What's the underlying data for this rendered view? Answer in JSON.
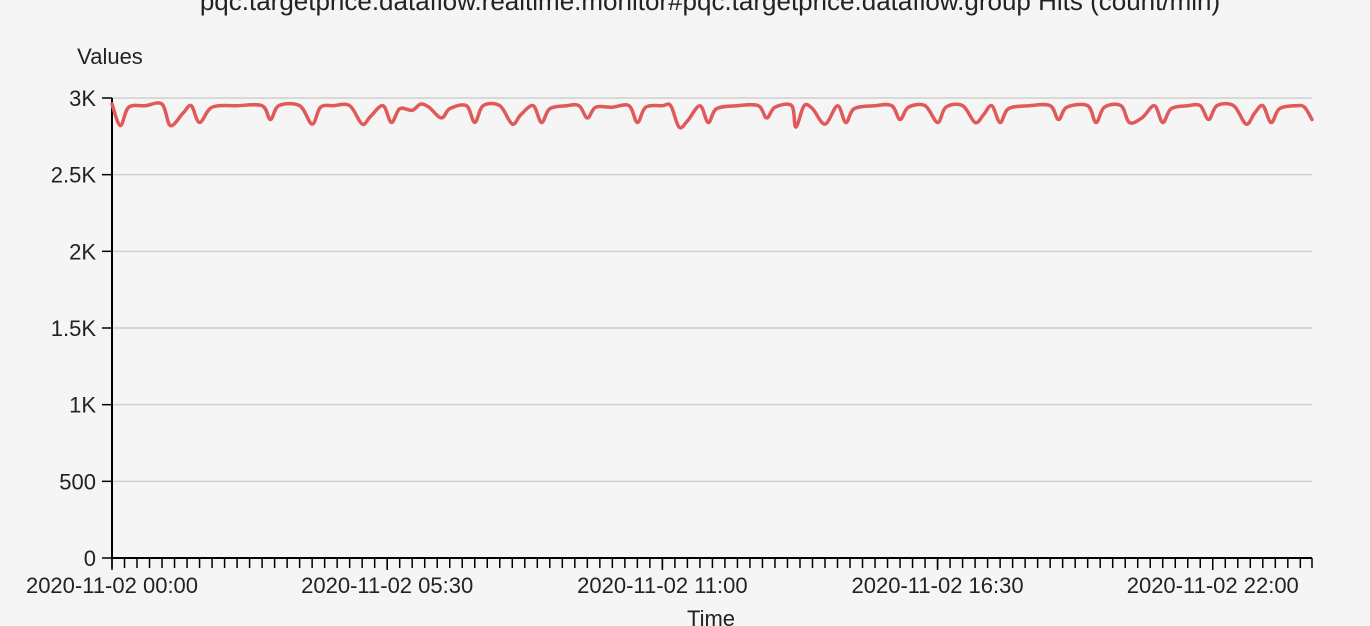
{
  "chart_data": {
    "type": "line",
    "title": "pqc.targetprice.dataflow.realtime.monitor#pqc.targetprice.dataflow.group Hits (count/min)",
    "xlabel": "Time",
    "ylabel": "Values",
    "grid": true,
    "ylim": [
      0,
      3000
    ],
    "y_ticks": [
      0,
      500,
      1000,
      1500,
      2000,
      2500,
      3000
    ],
    "y_tick_labels": [
      "0",
      "500",
      "1K",
      "1.5K",
      "2K",
      "2.5K",
      "3K"
    ],
    "x_range": [
      "2020-11-02 00:00",
      "2020-11-02 23:59"
    ],
    "x_tick_labels": [
      {
        "time": "2020-11-02 00:00",
        "label": "2020-11-02 00:00"
      },
      {
        "time": "2020-11-02 05:30",
        "label": "2020-11-02 05:30"
      },
      {
        "time": "2020-11-02 11:00",
        "label": "2020-11-02 11:00"
      },
      {
        "time": "2020-11-02 16:30",
        "label": "2020-11-02 16:30"
      },
      {
        "time": "2020-11-02 22:00",
        "label": "2020-11-02 22:00"
      }
    ],
    "series": [
      {
        "color": "#e05a5a",
        "points": [
          [
            "2020-11-02 00:00",
            2960
          ],
          [
            "2020-11-02 00:10",
            2820
          ],
          [
            "2020-11-02 00:20",
            2940
          ],
          [
            "2020-11-02 00:40",
            2950
          ],
          [
            "2020-11-02 01:00",
            2960
          ],
          [
            "2020-11-02 01:10",
            2820
          ],
          [
            "2020-11-02 01:25",
            2900
          ],
          [
            "2020-11-02 01:35",
            2950
          ],
          [
            "2020-11-02 01:45",
            2840
          ],
          [
            "2020-11-02 02:00",
            2940
          ],
          [
            "2020-11-02 02:30",
            2950
          ],
          [
            "2020-11-02 03:00",
            2950
          ],
          [
            "2020-11-02 03:10",
            2860
          ],
          [
            "2020-11-02 03:20",
            2950
          ],
          [
            "2020-11-02 03:45",
            2950
          ],
          [
            "2020-11-02 04:00",
            2830
          ],
          [
            "2020-11-02 04:10",
            2940
          ],
          [
            "2020-11-02 04:25",
            2950
          ],
          [
            "2020-11-02 04:45",
            2950
          ],
          [
            "2020-11-02 05:00",
            2830
          ],
          [
            "2020-11-02 05:10",
            2880
          ],
          [
            "2020-11-02 05:25",
            2950
          ],
          [
            "2020-11-02 05:35",
            2840
          ],
          [
            "2020-11-02 05:45",
            2930
          ],
          [
            "2020-11-02 06:00",
            2920
          ],
          [
            "2020-11-02 06:10",
            2960
          ],
          [
            "2020-11-02 06:20",
            2940
          ],
          [
            "2020-11-02 06:35",
            2870
          ],
          [
            "2020-11-02 06:45",
            2930
          ],
          [
            "2020-11-02 07:05",
            2950
          ],
          [
            "2020-11-02 07:15",
            2840
          ],
          [
            "2020-11-02 07:25",
            2950
          ],
          [
            "2020-11-02 07:45",
            2950
          ],
          [
            "2020-11-02 08:00",
            2830
          ],
          [
            "2020-11-02 08:10",
            2890
          ],
          [
            "2020-11-02 08:25",
            2950
          ],
          [
            "2020-11-02 08:35",
            2840
          ],
          [
            "2020-11-02 08:45",
            2930
          ],
          [
            "2020-11-02 09:05",
            2950
          ],
          [
            "2020-11-02 09:20",
            2950
          ],
          [
            "2020-11-02 09:30",
            2870
          ],
          [
            "2020-11-02 09:40",
            2940
          ],
          [
            "2020-11-02 10:00",
            2940
          ],
          [
            "2020-11-02 10:20",
            2950
          ],
          [
            "2020-11-02 10:30",
            2840
          ],
          [
            "2020-11-02 10:40",
            2940
          ],
          [
            "2020-11-02 11:00",
            2950
          ],
          [
            "2020-11-02 11:10",
            2950
          ],
          [
            "2020-11-02 11:20",
            2810
          ],
          [
            "2020-11-02 11:30",
            2850
          ],
          [
            "2020-11-02 11:45",
            2950
          ],
          [
            "2020-11-02 11:55",
            2840
          ],
          [
            "2020-11-02 12:05",
            2930
          ],
          [
            "2020-11-02 12:30",
            2950
          ],
          [
            "2020-11-02 12:55",
            2950
          ],
          [
            "2020-11-02 13:05",
            2870
          ],
          [
            "2020-11-02 13:15",
            2940
          ],
          [
            "2020-11-02 13:35",
            2950
          ],
          [
            "2020-11-02 13:40",
            2810
          ],
          [
            "2020-11-02 13:50",
            2950
          ],
          [
            "2020-11-02 14:00",
            2930
          ],
          [
            "2020-11-02 14:15",
            2830
          ],
          [
            "2020-11-02 14:30",
            2950
          ],
          [
            "2020-11-02 14:40",
            2840
          ],
          [
            "2020-11-02 14:50",
            2930
          ],
          [
            "2020-11-02 15:15",
            2950
          ],
          [
            "2020-11-02 15:35",
            2950
          ],
          [
            "2020-11-02 15:45",
            2860
          ],
          [
            "2020-11-02 15:55",
            2940
          ],
          [
            "2020-11-02 16:15",
            2950
          ],
          [
            "2020-11-02 16:30",
            2840
          ],
          [
            "2020-11-02 16:40",
            2940
          ],
          [
            "2020-11-02 17:00",
            2950
          ],
          [
            "2020-11-02 17:15",
            2840
          ],
          [
            "2020-11-02 17:25",
            2890
          ],
          [
            "2020-11-02 17:35",
            2950
          ],
          [
            "2020-11-02 17:45",
            2840
          ],
          [
            "2020-11-02 17:55",
            2930
          ],
          [
            "2020-11-02 18:20",
            2950
          ],
          [
            "2020-11-02 18:45",
            2950
          ],
          [
            "2020-11-02 18:55",
            2860
          ],
          [
            "2020-11-02 19:05",
            2940
          ],
          [
            "2020-11-02 19:30",
            2950
          ],
          [
            "2020-11-02 19:40",
            2840
          ],
          [
            "2020-11-02 19:50",
            2940
          ],
          [
            "2020-11-02 20:10",
            2950
          ],
          [
            "2020-11-02 20:20",
            2840
          ],
          [
            "2020-11-02 20:35",
            2870
          ],
          [
            "2020-11-02 20:50",
            2950
          ],
          [
            "2020-11-02 21:00",
            2840
          ],
          [
            "2020-11-02 21:10",
            2930
          ],
          [
            "2020-11-02 21:30",
            2950
          ],
          [
            "2020-11-02 21:45",
            2950
          ],
          [
            "2020-11-02 21:55",
            2860
          ],
          [
            "2020-11-02 22:05",
            2950
          ],
          [
            "2020-11-02 22:25",
            2950
          ],
          [
            "2020-11-02 22:40",
            2830
          ],
          [
            "2020-11-02 22:50",
            2900
          ],
          [
            "2020-11-02 23:00",
            2950
          ],
          [
            "2020-11-02 23:10",
            2840
          ],
          [
            "2020-11-02 23:20",
            2930
          ],
          [
            "2020-11-02 23:40",
            2950
          ],
          [
            "2020-11-02 23:50",
            2940
          ],
          [
            "2020-11-02 23:59",
            2860
          ]
        ]
      }
    ]
  }
}
